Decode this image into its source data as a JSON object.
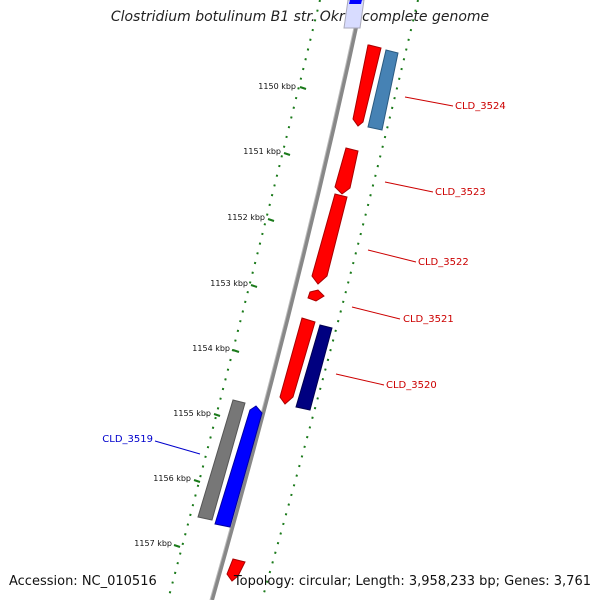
{
  "title": "Clostridium botulinum B1 str. Okra, complete genome",
  "footer": {
    "accession": "Accession: NC_010516",
    "summary": "Topology: circular; Length: 3,958,233 bp; Genes: 3,761"
  },
  "ticks": [
    {
      "label": "1150 kbp"
    },
    {
      "label": "1151 kbp"
    },
    {
      "label": "1152 kbp"
    },
    {
      "label": "1153 kbp"
    },
    {
      "label": "1154 kbp"
    },
    {
      "label": "1155 kbp"
    },
    {
      "label": "1156 kbp"
    },
    {
      "label": "1157 kbp"
    }
  ],
  "genes": [
    {
      "label": "CLD_3524",
      "color": "#cc0000"
    },
    {
      "label": "CLD_3523",
      "color": "#cc0000"
    },
    {
      "label": "CLD_3522",
      "color": "#cc0000"
    },
    {
      "label": "CLD_3521",
      "color": "#cc0000"
    },
    {
      "label": "CLD_3520",
      "color": "#cc0000"
    },
    {
      "label": "CLD_3519",
      "color": "#0000cc"
    }
  ],
  "colors": {
    "cds_red": "#ff0000",
    "cds_blue": "#0000ff",
    "cds_steel": "#4682b4",
    "cds_navy": "#000080",
    "cds_gray": "#777777",
    "backbone": "#888888",
    "tick_green": "#1a7a1a"
  }
}
